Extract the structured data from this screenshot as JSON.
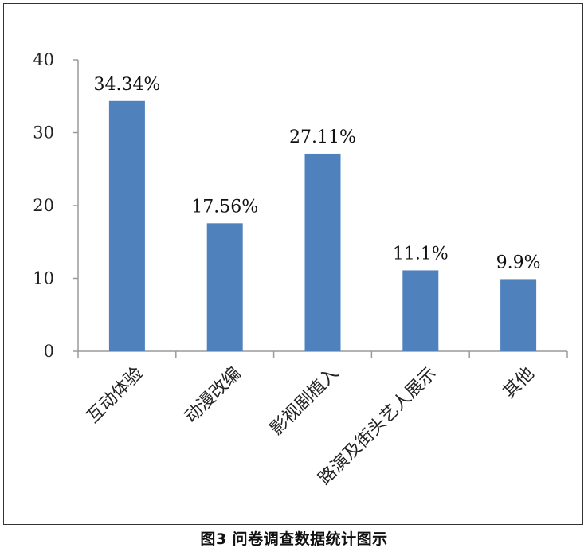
{
  "caption": "图3  问卷调查数据统计图示",
  "colors": {
    "bar": "#4f81bd",
    "axis": "#9a9a9a",
    "text": "#222222"
  },
  "chart_data": {
    "type": "bar",
    "title": "",
    "xlabel": "",
    "ylabel": "",
    "categories": [
      "互动体验",
      "动漫改编",
      "影视剧植入",
      "路演及街头艺人展示",
      "其他"
    ],
    "values": [
      34.34,
      17.56,
      27.11,
      11.1,
      9.9
    ],
    "data_labels": [
      "34.34%",
      "17.56%",
      "27.11%",
      "11.1%",
      "9.9%"
    ],
    "ylim": [
      0,
      40
    ],
    "yticks": [
      0,
      10,
      20,
      30,
      40
    ],
    "grid": false,
    "legend": "none"
  }
}
